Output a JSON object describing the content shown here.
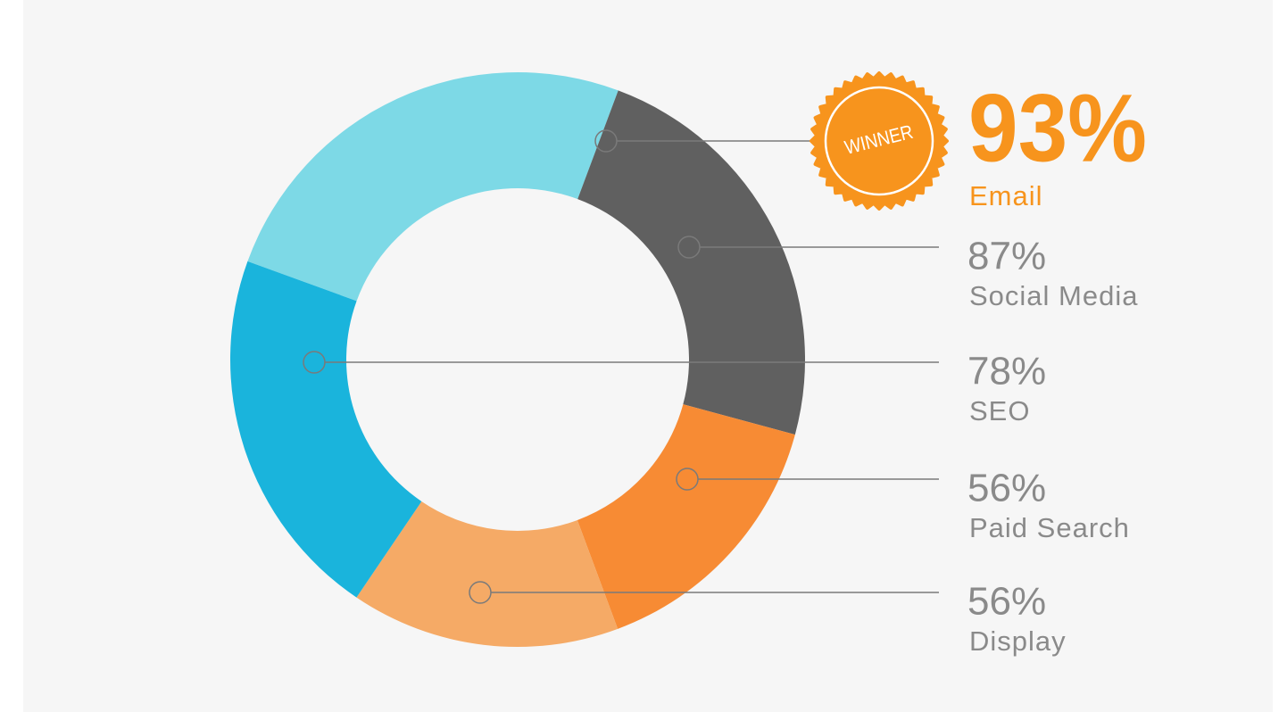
{
  "chart_data": {
    "type": "donut",
    "badge": "WINNER",
    "categories": [
      "Email",
      "Social Media",
      "SEO",
      "Paid Search",
      "Display"
    ],
    "values": [
      93,
      87,
      78,
      56,
      56
    ],
    "value_labels": [
      "93%",
      "87%",
      "78%",
      "56%",
      "56%"
    ],
    "colors": [
      "#7dd9e6",
      "#606060",
      "#1ab4dc",
      "#f78b34",
      "#f5aa66"
    ]
  }
}
